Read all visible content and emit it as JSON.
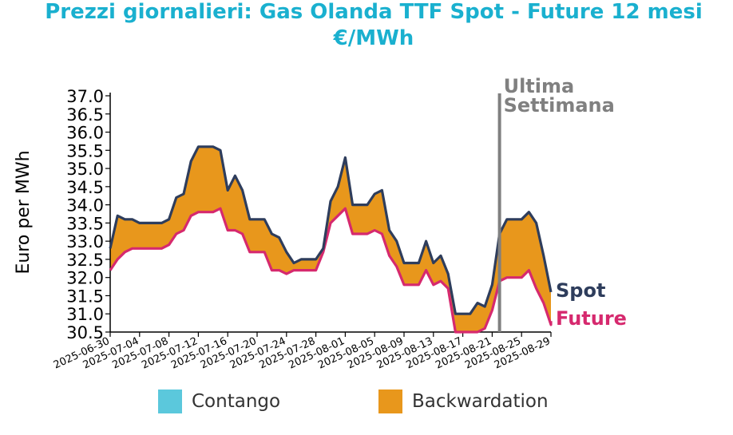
{
  "title": "Prezzi giornalieri: Gas Olanda TTF Spot - Future 12 mesi",
  "subtitle": "€/MWh",
  "colors": {
    "title": "#1ab0cf",
    "spot": "#2e3d5c",
    "future": "#d6296e",
    "backwardation": "#e8971c",
    "contango": "#5bc8dc",
    "marker": "#808080"
  },
  "chart_data": {
    "type": "line",
    "ylabel": "Euro per MWh",
    "ylim": [
      30.5,
      37.0
    ],
    "yticks": [
      "30.5",
      "31.0",
      "31.5",
      "32.0",
      "32.5",
      "33.0",
      "33.5",
      "34.0",
      "34.5",
      "35.0",
      "35.5",
      "36.0",
      "36.5",
      "37.0"
    ],
    "xticks": [
      "2025-06-30",
      "2025-07-04",
      "2025-07-08",
      "2025-07-12",
      "2025-07-16",
      "2025-07-20",
      "2025-07-24",
      "2025-07-28",
      "2025-08-01",
      "2025-08-05",
      "2025-08-09",
      "2025-08-13",
      "2025-08-17",
      "2025-08-21",
      "2025-08-25",
      "2025-08-29"
    ],
    "x_range": [
      "2025-06-30",
      "2025-08-29"
    ],
    "marker_date": "2025-08-22",
    "marker_label_1": "Ultima",
    "marker_label_2": "Settimana",
    "series": [
      {
        "name": "Spot",
        "points": [
          [
            "2025-06-30",
            32.8
          ],
          [
            "2025-07-01",
            33.7
          ],
          [
            "2025-07-02",
            33.6
          ],
          [
            "2025-07-03",
            33.6
          ],
          [
            "2025-07-04",
            33.5
          ],
          [
            "2025-07-07",
            33.5
          ],
          [
            "2025-07-08",
            33.6
          ],
          [
            "2025-07-09",
            34.2
          ],
          [
            "2025-07-10",
            34.3
          ],
          [
            "2025-07-11",
            35.2
          ],
          [
            "2025-07-12",
            35.6
          ],
          [
            "2025-07-14",
            35.6
          ],
          [
            "2025-07-15",
            35.5
          ],
          [
            "2025-07-16",
            34.4
          ],
          [
            "2025-07-17",
            34.8
          ],
          [
            "2025-07-18",
            34.4
          ],
          [
            "2025-07-19",
            33.6
          ],
          [
            "2025-07-21",
            33.6
          ],
          [
            "2025-07-22",
            33.2
          ],
          [
            "2025-07-23",
            33.1
          ],
          [
            "2025-07-24",
            32.7
          ],
          [
            "2025-07-25",
            32.4
          ],
          [
            "2025-07-26",
            32.5
          ],
          [
            "2025-07-28",
            32.5
          ],
          [
            "2025-07-29",
            32.8
          ],
          [
            "2025-07-30",
            34.1
          ],
          [
            "2025-07-31",
            34.5
          ],
          [
            "2025-08-01",
            35.3
          ],
          [
            "2025-08-02",
            34.0
          ],
          [
            "2025-08-04",
            34.0
          ],
          [
            "2025-08-05",
            34.3
          ],
          [
            "2025-08-06",
            34.4
          ],
          [
            "2025-08-07",
            33.3
          ],
          [
            "2025-08-08",
            33.0
          ],
          [
            "2025-08-09",
            32.4
          ],
          [
            "2025-08-11",
            32.4
          ],
          [
            "2025-08-12",
            33.0
          ],
          [
            "2025-08-13",
            32.4
          ],
          [
            "2025-08-14",
            32.6
          ],
          [
            "2025-08-15",
            32.1
          ],
          [
            "2025-08-16",
            31.0
          ],
          [
            "2025-08-18",
            31.0
          ],
          [
            "2025-08-19",
            31.3
          ],
          [
            "2025-08-20",
            31.2
          ],
          [
            "2025-08-21",
            31.8
          ],
          [
            "2025-08-22",
            33.2
          ],
          [
            "2025-08-23",
            33.6
          ],
          [
            "2025-08-25",
            33.6
          ],
          [
            "2025-08-26",
            33.8
          ],
          [
            "2025-08-27",
            33.5
          ],
          [
            "2025-08-28",
            32.6
          ],
          [
            "2025-08-29",
            31.6
          ],
          [
            "2025-08-30",
            31.6
          ]
        ]
      },
      {
        "name": "Future",
        "points": [
          [
            "2025-06-30",
            32.2
          ],
          [
            "2025-07-01",
            32.5
          ],
          [
            "2025-07-02",
            32.7
          ],
          [
            "2025-07-03",
            32.8
          ],
          [
            "2025-07-04",
            32.8
          ],
          [
            "2025-07-07",
            32.8
          ],
          [
            "2025-07-08",
            32.9
          ],
          [
            "2025-07-09",
            33.2
          ],
          [
            "2025-07-10",
            33.3
          ],
          [
            "2025-07-11",
            33.7
          ],
          [
            "2025-07-12",
            33.8
          ],
          [
            "2025-07-14",
            33.8
          ],
          [
            "2025-07-15",
            33.9
          ],
          [
            "2025-07-16",
            33.3
          ],
          [
            "2025-07-17",
            33.3
          ],
          [
            "2025-07-18",
            33.2
          ],
          [
            "2025-07-19",
            32.7
          ],
          [
            "2025-07-21",
            32.7
          ],
          [
            "2025-07-22",
            32.2
          ],
          [
            "2025-07-23",
            32.2
          ],
          [
            "2025-07-24",
            32.1
          ],
          [
            "2025-07-25",
            32.2
          ],
          [
            "2025-07-26",
            32.2
          ],
          [
            "2025-07-28",
            32.2
          ],
          [
            "2025-07-29",
            32.7
          ],
          [
            "2025-07-30",
            33.5
          ],
          [
            "2025-07-31",
            33.7
          ],
          [
            "2025-08-01",
            33.9
          ],
          [
            "2025-08-02",
            33.2
          ],
          [
            "2025-08-04",
            33.2
          ],
          [
            "2025-08-05",
            33.3
          ],
          [
            "2025-08-06",
            33.2
          ],
          [
            "2025-08-07",
            32.6
          ],
          [
            "2025-08-08",
            32.3
          ],
          [
            "2025-08-09",
            31.8
          ],
          [
            "2025-08-11",
            31.8
          ],
          [
            "2025-08-12",
            32.2
          ],
          [
            "2025-08-13",
            31.8
          ],
          [
            "2025-08-14",
            31.9
          ],
          [
            "2025-08-15",
            31.7
          ],
          [
            "2025-08-16",
            30.5
          ],
          [
            "2025-08-18",
            30.5
          ],
          [
            "2025-08-19",
            30.5
          ],
          [
            "2025-08-20",
            30.6
          ],
          [
            "2025-08-21",
            31.1
          ],
          [
            "2025-08-22",
            31.9
          ],
          [
            "2025-08-23",
            32.0
          ],
          [
            "2025-08-25",
            32.0
          ],
          [
            "2025-08-26",
            32.2
          ],
          [
            "2025-08-27",
            31.7
          ],
          [
            "2025-08-28",
            31.3
          ],
          [
            "2025-08-29",
            30.7
          ],
          [
            "2025-08-30",
            30.8
          ]
        ]
      }
    ],
    "legend": [
      {
        "label": "Contango",
        "color": "#5bc8dc"
      },
      {
        "label": "Backwardation",
        "color": "#e8971c"
      }
    ],
    "legend_position": "bottom"
  }
}
